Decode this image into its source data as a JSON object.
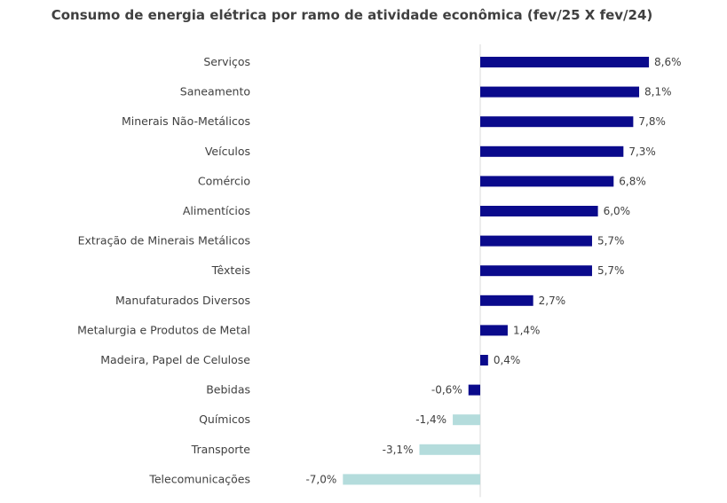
{
  "chart_data": {
    "type": "bar",
    "orientation": "horizontal",
    "title": "Consumo de energia elétrica por ramo de atividade econômica (fev/25 X fev/24)",
    "categories": [
      "Serviços",
      "Saneamento",
      "Minerais Não-Metálicos",
      "Veículos",
      "Comércio",
      "Alimentícios",
      "Extração de Minerais Metálicos",
      "Têxteis",
      "Manufaturados Diversos",
      "Metalurgia e Produtos de Metal",
      "Madeira, Papel de Celulose",
      "Bebidas",
      "Químicos",
      "Transporte",
      "Telecomunicações"
    ],
    "values": [
      8.6,
      8.1,
      7.8,
      7.3,
      6.8,
      6.0,
      5.7,
      5.7,
      2.7,
      1.4,
      0.4,
      -0.6,
      -1.4,
      -3.1,
      -7.0
    ],
    "value_labels": [
      "8,6%",
      "8,1%",
      "7,8%",
      "7,3%",
      "6,8%",
      "6,0%",
      "5,7%",
      "5,7%",
      "2,7%",
      "1,4%",
      "0,4%",
      "-0,6%",
      "-1,4%",
      "-3,1%",
      "-7,0%"
    ],
    "unit": "%",
    "xlim": [
      -7.0,
      8.6
    ],
    "grid": false,
    "legend": "none",
    "colors": {
      "positive": "#0a0a8c",
      "negative_default": "#0a0a8c",
      "negative_highlight": "#b4dcdc",
      "axis": "#d9d9d9",
      "text": "#404040"
    },
    "highlighted_categories": [
      "Químicos",
      "Transporte",
      "Telecomunicações"
    ]
  }
}
